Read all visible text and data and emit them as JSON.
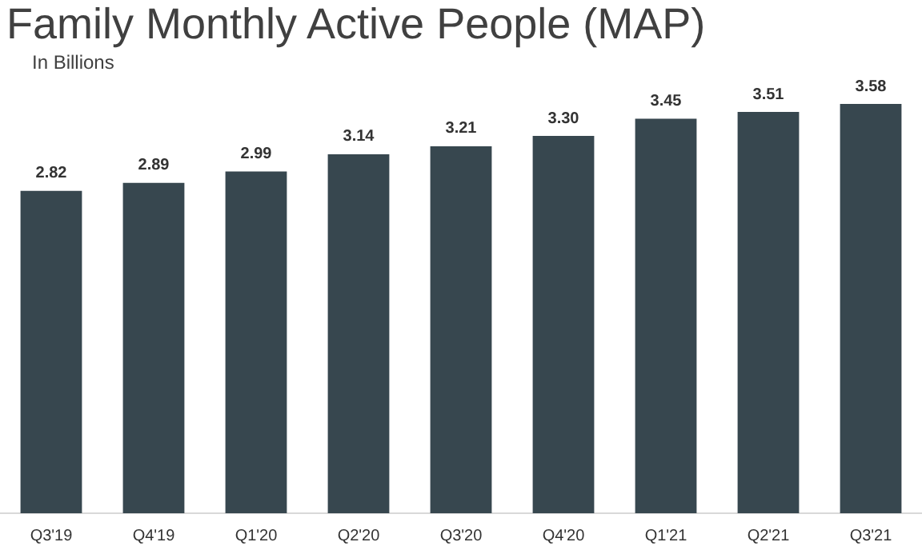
{
  "chart_data": {
    "type": "bar",
    "title": "Family Monthly Active People (MAP)",
    "subtitle": "In Billions",
    "categories": [
      "Q3'19",
      "Q4'19",
      "Q1'20",
      "Q2'20",
      "Q3'20",
      "Q4'20",
      "Q1'21",
      "Q2'21",
      "Q3'21"
    ],
    "values": [
      2.82,
      2.89,
      2.99,
      3.14,
      3.21,
      3.3,
      3.45,
      3.51,
      3.58
    ],
    "value_labels": [
      "2.82",
      "2.89",
      "2.99",
      "3.14",
      "3.21",
      "3.30",
      "3.45",
      "3.51",
      "3.58"
    ],
    "color": "#37474f",
    "grid": false,
    "legend": false
  }
}
